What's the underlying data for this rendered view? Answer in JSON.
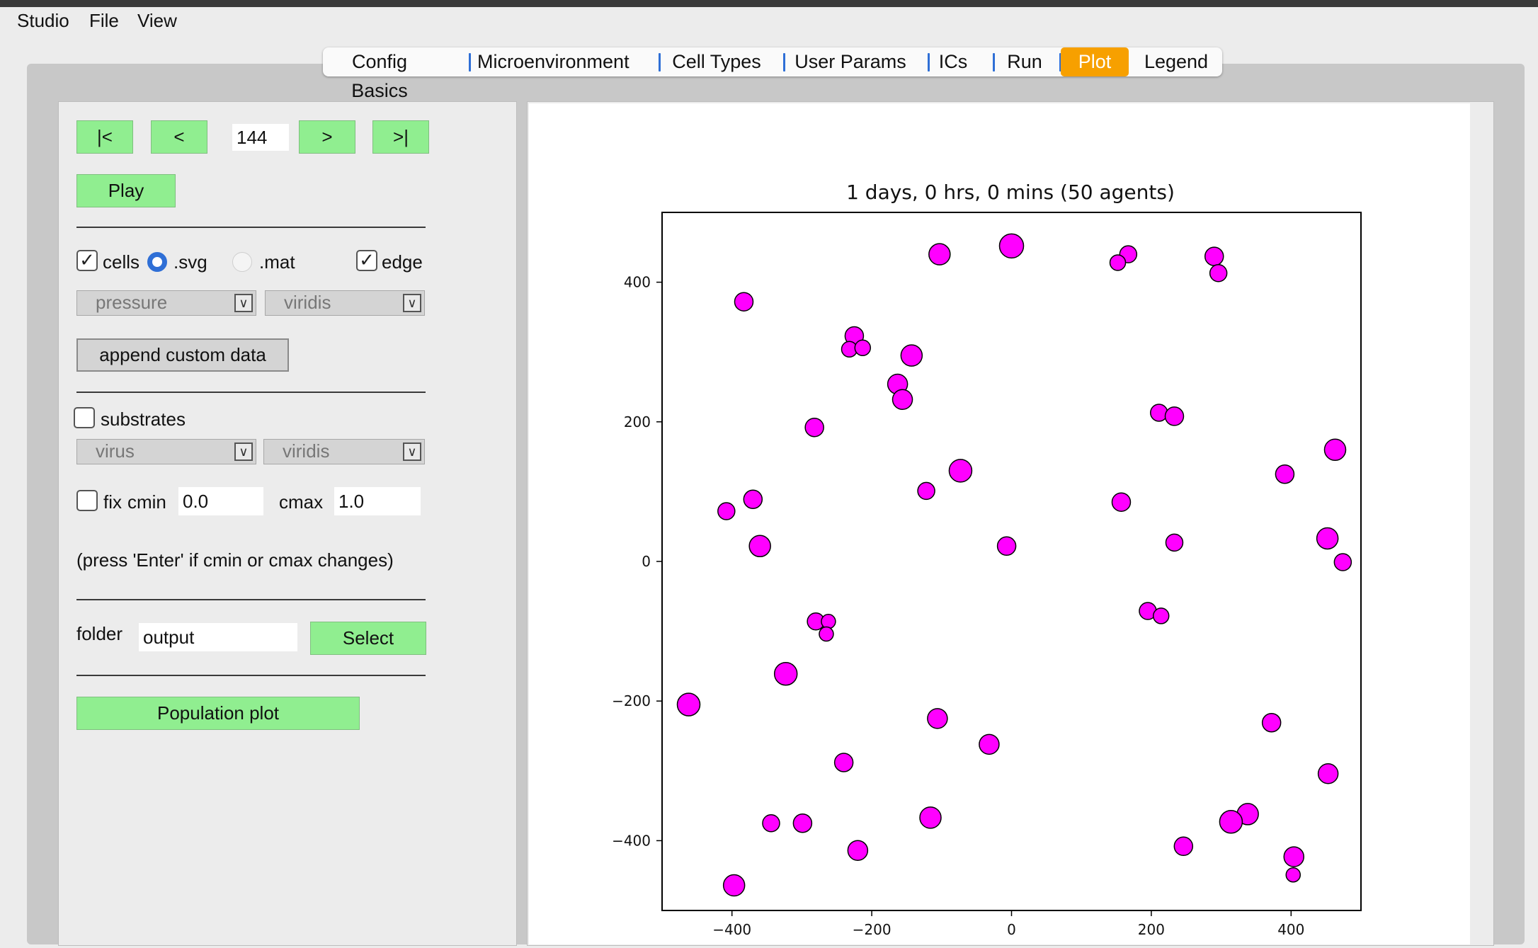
{
  "menubar": {
    "items": [
      "Studio",
      "File",
      "View"
    ]
  },
  "tabs": [
    {
      "label": "Config Basics",
      "active": false
    },
    {
      "label": "Microenvironment",
      "active": false
    },
    {
      "label": "Cell Types",
      "active": false
    },
    {
      "label": "User Params",
      "active": false
    },
    {
      "label": "ICs",
      "active": false
    },
    {
      "label": "Run",
      "active": false
    },
    {
      "label": "Plot",
      "active": true
    },
    {
      "label": "Legend",
      "active": false
    }
  ],
  "controls": {
    "first_label": "|<",
    "prev_label": "<",
    "frame_value": "144",
    "next_label": ">",
    "last_label": ">|",
    "play_label": "Play",
    "cells_label": "cells",
    "cells_checked": true,
    "svg_label": ".svg",
    "svg_selected": true,
    "mat_label": ".mat",
    "mat_selected": false,
    "edge_label": "edge",
    "edge_checked": true,
    "cell_scalar": "pressure",
    "cell_cmap": "viridis",
    "append_label": "append custom data",
    "substrates_label": "substrates",
    "substrates_checked": false,
    "substrate_name": "virus",
    "substrate_cmap": "viridis",
    "fix_label": "fix",
    "fix_checked": false,
    "cmin_label": "cmin",
    "cmin_value": "0.0",
    "cmax_label": "cmax",
    "cmax_value": "1.0",
    "hint": "(press 'Enter' if cmin or cmax changes)",
    "folder_label": "folder",
    "folder_value": "output",
    "select_label": "Select",
    "population_label": "Population plot"
  },
  "colors": {
    "accent_tab": "#f7a000",
    "green_button": "#90ee90",
    "cell_fill": "#ff00ff",
    "tab_separator": "#2f6fd6"
  },
  "chart_data": {
    "type": "scatter",
    "title": "1 days, 0 hrs, 0 mins (50 agents)",
    "xlim": [
      -500,
      500
    ],
    "ylim": [
      -500,
      500
    ],
    "xticks": [
      -400,
      -200,
      0,
      200,
      400
    ],
    "yticks": [
      -400,
      -200,
      0,
      200,
      400
    ],
    "xticklabels": [
      "−400",
      "−200",
      "0",
      "200",
      "400"
    ],
    "yticklabels": [
      "−400",
      "−200",
      "0",
      "200",
      "400"
    ],
    "xlabel": "",
    "ylabel": "",
    "grid": false,
    "marker_color": "#ff00ff",
    "series": [
      {
        "points": [
          {
            "x": 0,
            "y": 452,
            "r": 17
          },
          {
            "x": -103,
            "y": 440,
            "r": 15
          },
          {
            "x": 167,
            "y": 440,
            "r": 12
          },
          {
            "x": 152,
            "y": 428,
            "r": 11
          },
          {
            "x": 290,
            "y": 437,
            "r": 13
          },
          {
            "x": 296,
            "y": 413,
            "r": 12
          },
          {
            "x": -383,
            "y": 372,
            "r": 13
          },
          {
            "x": -225,
            "y": 323,
            "r": 13
          },
          {
            "x": -232,
            "y": 304,
            "r": 11
          },
          {
            "x": -213,
            "y": 306,
            "r": 11
          },
          {
            "x": -143,
            "y": 295,
            "r": 15
          },
          {
            "x": -163,
            "y": 254,
            "r": 14
          },
          {
            "x": -156,
            "y": 232,
            "r": 14
          },
          {
            "x": -282,
            "y": 192,
            "r": 13
          },
          {
            "x": 211,
            "y": 213,
            "r": 12
          },
          {
            "x": 233,
            "y": 208,
            "r": 13
          },
          {
            "x": 463,
            "y": 160,
            "r": 15
          },
          {
            "x": -73,
            "y": 130,
            "r": 16
          },
          {
            "x": 391,
            "y": 125,
            "r": 13
          },
          {
            "x": -122,
            "y": 101,
            "r": 12
          },
          {
            "x": 157,
            "y": 85,
            "r": 13
          },
          {
            "x": -370,
            "y": 89,
            "r": 13
          },
          {
            "x": -408,
            "y": 72,
            "r": 12
          },
          {
            "x": 452,
            "y": 33,
            "r": 15
          },
          {
            "x": 233,
            "y": 27,
            "r": 12
          },
          {
            "x": -360,
            "y": 22,
            "r": 15
          },
          {
            "x": -7,
            "y": 22,
            "r": 13
          },
          {
            "x": 474,
            "y": -1,
            "r": 12
          },
          {
            "x": 195,
            "y": -71,
            "r": 12
          },
          {
            "x": 214,
            "y": -78,
            "r": 11
          },
          {
            "x": -280,
            "y": -86,
            "r": 12
          },
          {
            "x": -262,
            "y": -86,
            "r": 10
          },
          {
            "x": -265,
            "y": -104,
            "r": 10
          },
          {
            "x": -323,
            "y": -161,
            "r": 16
          },
          {
            "x": -462,
            "y": -205,
            "r": 16
          },
          {
            "x": -106,
            "y": -225,
            "r": 14
          },
          {
            "x": 372,
            "y": -231,
            "r": 13
          },
          {
            "x": -32,
            "y": -262,
            "r": 14
          },
          {
            "x": -240,
            "y": -288,
            "r": 13
          },
          {
            "x": 453,
            "y": -304,
            "r": 14
          },
          {
            "x": -116,
            "y": -367,
            "r": 15
          },
          {
            "x": 338,
            "y": -362,
            "r": 15
          },
          {
            "x": 314,
            "y": -373,
            "r": 16
          },
          {
            "x": -344,
            "y": -375,
            "r": 12
          },
          {
            "x": -299,
            "y": -375,
            "r": 13
          },
          {
            "x": -220,
            "y": -414,
            "r": 14
          },
          {
            "x": 246,
            "y": -408,
            "r": 13
          },
          {
            "x": 404,
            "y": -423,
            "r": 14
          },
          {
            "x": 403,
            "y": -449,
            "r": 10
          },
          {
            "x": -397,
            "y": -464,
            "r": 15
          }
        ]
      }
    ]
  }
}
